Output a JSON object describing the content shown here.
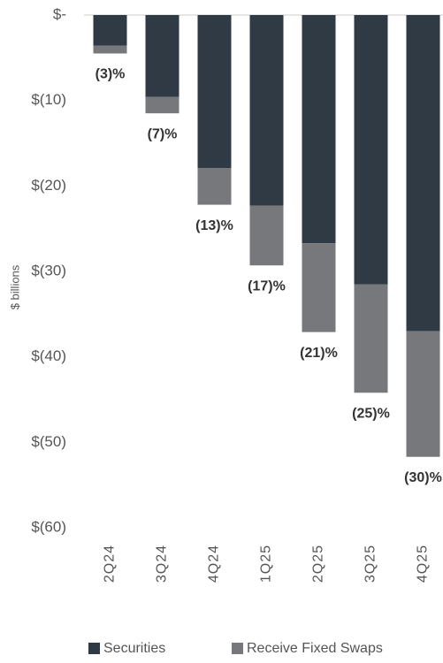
{
  "chart_data": {
    "type": "bar",
    "stacked": true,
    "y_label": "$ billions",
    "categories": [
      "2Q24",
      "3Q24",
      "4Q24",
      "1Q25",
      "2Q25",
      "3Q25",
      "4Q25"
    ],
    "series": [
      {
        "name": "Securities",
        "color": "#2f3a45",
        "values": [
          -3.6,
          -9.6,
          -17.9,
          -22.3,
          -26.7,
          -31.5,
          -37.0
        ]
      },
      {
        "name": "Receive Fixed Swaps",
        "color": "#77787b",
        "values": [
          -0.9,
          -1.9,
          -4.3,
          -7.0,
          -10.4,
          -12.7,
          -14.7
        ]
      }
    ],
    "annotations": [
      "(3)%",
      "(7)%",
      "(13)%",
      "(17)%",
      "(21)%",
      "(25)%",
      "(30)%"
    ],
    "ylim": [
      -60,
      0
    ],
    "yticks": [
      {
        "value": 0,
        "label": "$-"
      },
      {
        "value": -10,
        "label": "$(10)"
      },
      {
        "value": -20,
        "label": "$(20)"
      },
      {
        "value": -30,
        "label": "$(30)"
      },
      {
        "value": -40,
        "label": "$(40)"
      },
      {
        "value": -50,
        "label": "$(50)"
      },
      {
        "value": -60,
        "label": "$(60)"
      }
    ],
    "legend": "bottom"
  }
}
